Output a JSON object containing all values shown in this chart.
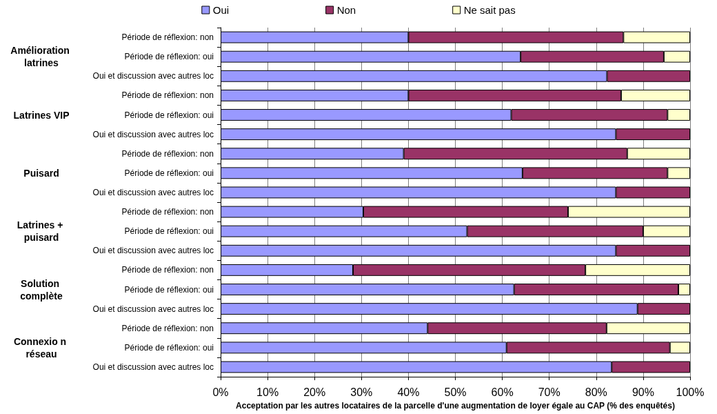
{
  "chart_data": {
    "type": "bar",
    "orientation": "horizontal",
    "stacked": true,
    "xlabel": "Acceptation par les autres locataires de la parcelle d'une augmentation de loyer égale au CAP (% des enquêtés)",
    "categories": [
      "Période de réflexion: non",
      "Période de réflexion: oui",
      "Oui et discussion avec autres loc",
      "Période de réflexion: non",
      "Période de réflexion: oui",
      "Oui et discussion avec autres loc",
      "Période de réflexion: non",
      "Période de réflexion: oui",
      "Oui et discussion avec autres loc",
      "Période de réflexion: non",
      "Période de réflexion: oui",
      "Oui et discussion avec autres loc",
      "Période de réflexion: non",
      "Période de réflexion: oui",
      "Oui et discussion avec autres loc",
      "Période de réflexion: non",
      "Période de réflexion: oui",
      "Oui et discussion avec autres loc"
    ],
    "annotations": [
      "Amélioration latrines",
      "Latrines VIP",
      "Puisard",
      "Latrines + puisard",
      "Solution complète",
      "Connexio n réseau"
    ],
    "series": [
      {
        "name": "Oui",
        "color": "#9999ff",
        "values": [
          40,
          63.9,
          82.3,
          40,
          61.9,
          84.2,
          39,
          64.3,
          84.2,
          30.4,
          52.5,
          84.2,
          28.2,
          62.5,
          88.8,
          44.1,
          60.9,
          83.3
        ]
      },
      {
        "name": "Non",
        "color": "#993366",
        "values": [
          45.8,
          30.5,
          17.7,
          45.3,
          33.3,
          15.8,
          47.6,
          30.9,
          15.8,
          43.6,
          37.5,
          15.8,
          49.5,
          35,
          11.2,
          38.1,
          34.8,
          16.7
        ]
      },
      {
        "name": "Ne sait pas",
        "color": "#ffffcc",
        "values": [
          14.2,
          5.6,
          null,
          14.7,
          4.8,
          null,
          13.4,
          4.8,
          null,
          26,
          10,
          null,
          22.3,
          2.5,
          null,
          17.8,
          4.3,
          null
        ]
      }
    ],
    "xlim": [
      0,
      100
    ],
    "xticks": [
      {
        "value": 0,
        "label": "0%"
      },
      {
        "value": 10,
        "label": "10%"
      },
      {
        "value": 20,
        "label": "20%"
      },
      {
        "value": 30,
        "label": "30%"
      },
      {
        "value": 40,
        "label": "40%"
      },
      {
        "value": 50,
        "label": "50%"
      },
      {
        "value": 60,
        "label": "60%"
      },
      {
        "value": 70,
        "label": "70%"
      },
      {
        "value": 80,
        "label": "80%"
      },
      {
        "value": 90,
        "label": "90%"
      },
      {
        "value": 100,
        "label": "100%"
      }
    ],
    "grid": "x",
    "legend": "top"
  }
}
